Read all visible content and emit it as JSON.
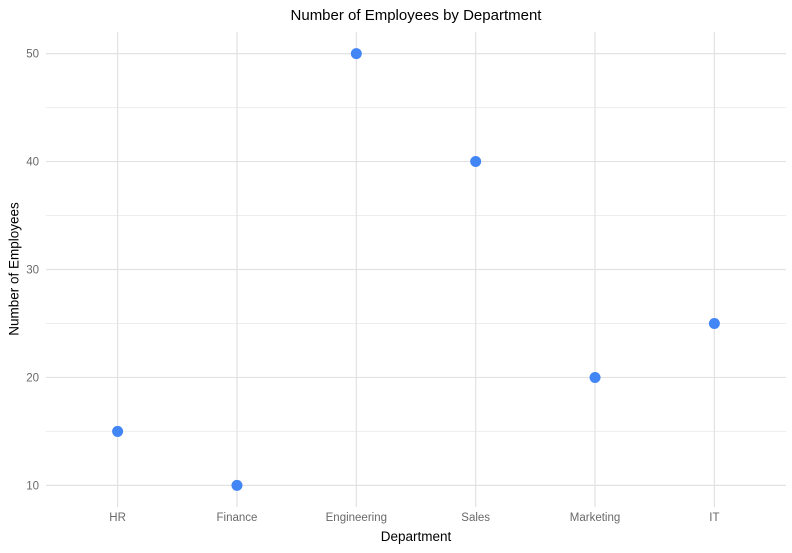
{
  "chart_data": {
    "type": "scatter",
    "title": "Number of Employees by Department",
    "xlabel": "Department",
    "ylabel": "Number of Employees",
    "categories": [
      "HR",
      "Finance",
      "Engineering",
      "Sales",
      "Marketing",
      "IT"
    ],
    "values": [
      15,
      10,
      50,
      40,
      20,
      25
    ],
    "yticks": [
      10,
      20,
      30,
      40,
      50
    ],
    "yminor": [
      15,
      25,
      35,
      45
    ],
    "ylim": [
      8,
      52
    ],
    "grid": "horizontal major+minor, vertical major per category",
    "legend": "none",
    "colors": {
      "point": "#4285F4",
      "grid_major": "#e2e2e2",
      "grid_minor": "#ededed",
      "tick_label": "#696969",
      "axis_title": "#000000",
      "title": "#000000",
      "background": "#ffffff"
    }
  }
}
